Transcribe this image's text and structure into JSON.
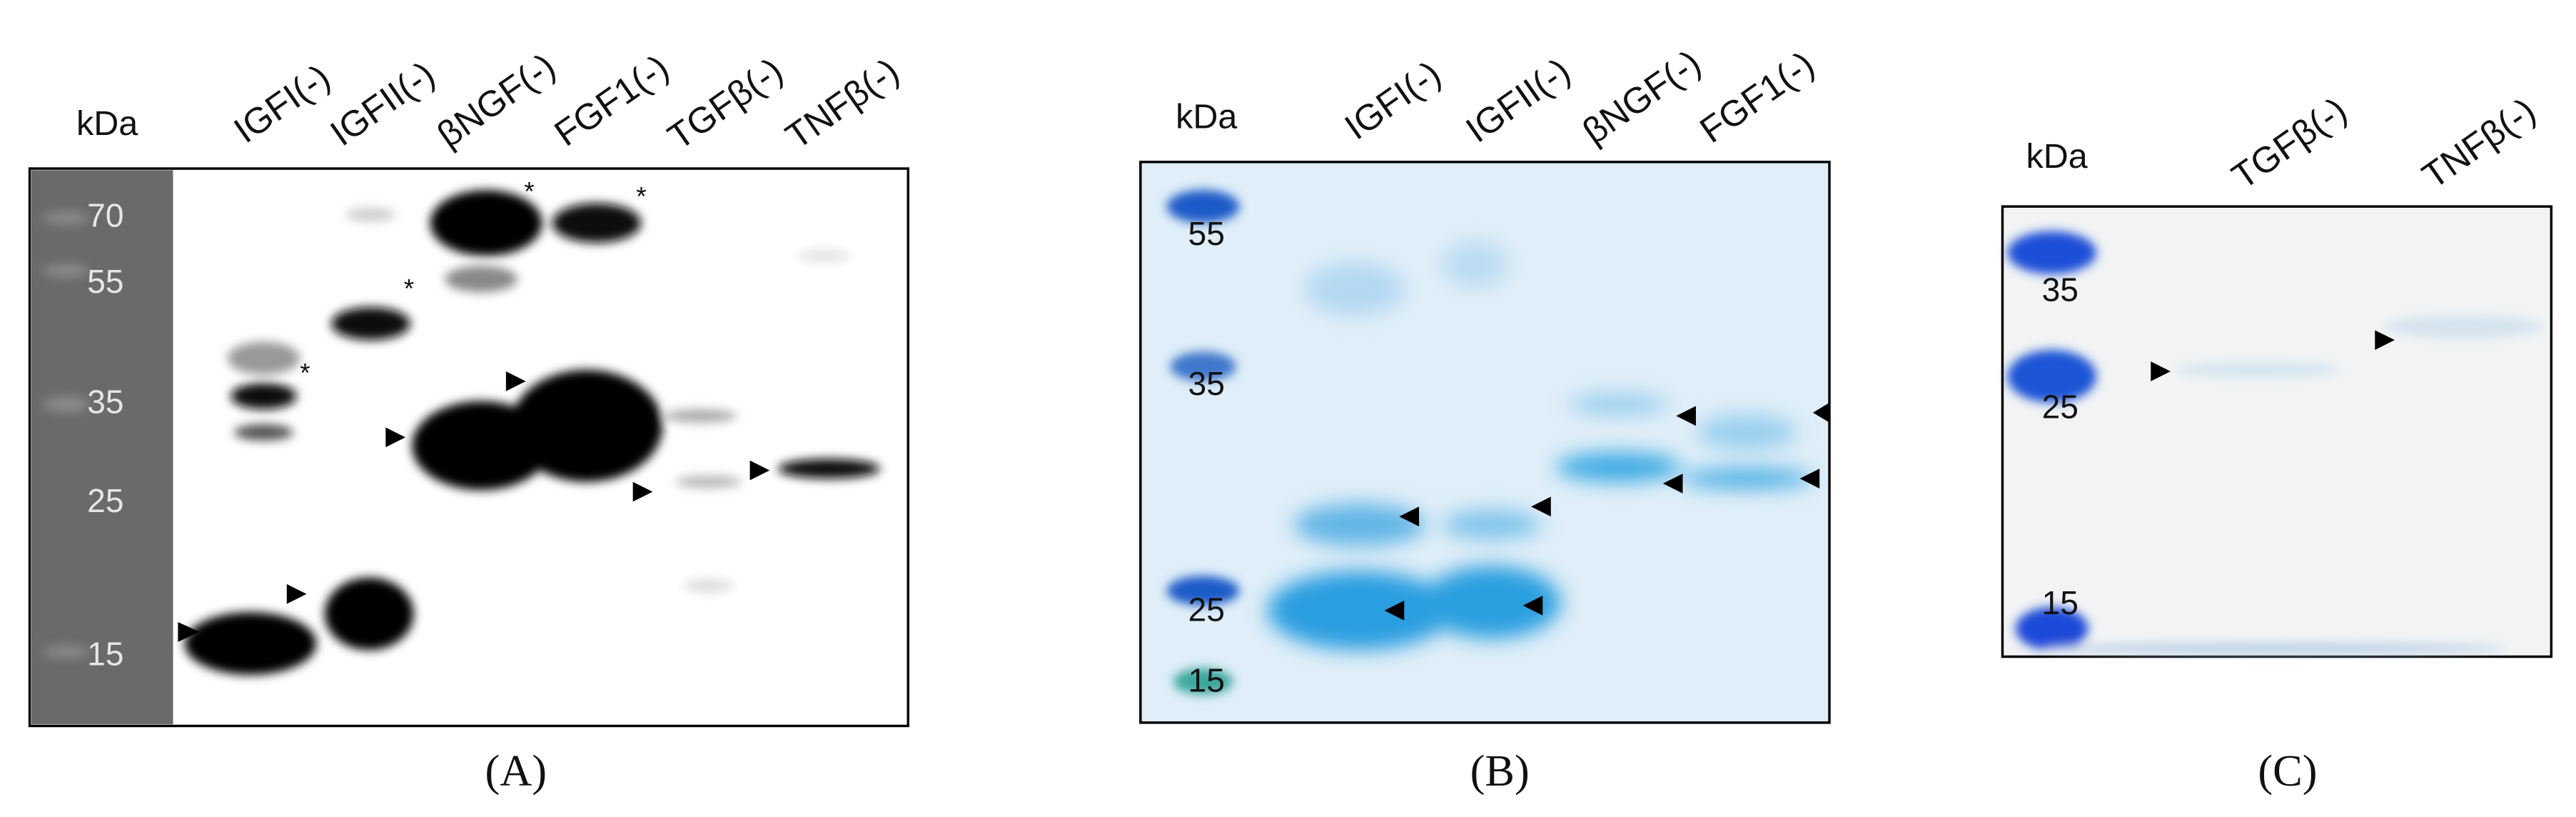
{
  "panels": [
    {
      "letter": "(A)",
      "kda": "kDa",
      "lanes": [
        "IGFI(-)",
        "IGFII(-)",
        "βNGF(-)",
        "FGF1(-)",
        "TGFβ(-)",
        "TNFβ(-)"
      ],
      "markers": [
        "70",
        "55",
        "35",
        "25",
        "15"
      ],
      "asterisks": [
        "*",
        "*",
        "*",
        "*"
      ]
    },
    {
      "letter": "(B)",
      "kda": "kDa",
      "lanes": [
        "IGFI(-)",
        "IGFII(-)",
        "βNGF(-)",
        "FGF1(-)"
      ],
      "markers": [
        "55",
        "35",
        "25",
        "15"
      ]
    },
    {
      "letter": "(C)",
      "kda": "kDa",
      "lanes": [
        "TGFβ(-)",
        "TNFβ(-)"
      ],
      "markers": [
        "35",
        "25",
        "15"
      ]
    }
  ]
}
